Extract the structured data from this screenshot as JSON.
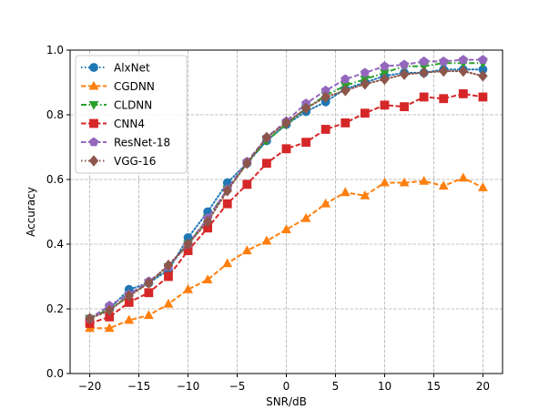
{
  "chart_data": {
    "type": "line",
    "title": "",
    "xlabel": "SNR/dB",
    "ylabel": "Accuracy",
    "xlim": [
      -22,
      22
    ],
    "ylim": [
      0,
      1.0
    ],
    "xticks": [
      -20,
      -15,
      -10,
      -5,
      0,
      5,
      10,
      15,
      20
    ],
    "yticks": [
      0.0,
      0.2,
      0.4,
      0.6,
      0.8,
      1.0
    ],
    "xtick_labels": [
      "−20",
      "−15",
      "−10",
      "−5",
      "0",
      "5",
      "10",
      "15",
      "20"
    ],
    "ytick_labels": [
      "0.0",
      "0.2",
      "0.4",
      "0.6",
      "0.8",
      "1.0"
    ],
    "grid": true,
    "legend_position": "top-left",
    "x": [
      -20,
      -18,
      -16,
      -14,
      -12,
      -10,
      -8,
      -6,
      -4,
      -2,
      0,
      2,
      4,
      6,
      8,
      10,
      12,
      14,
      16,
      18,
      20
    ],
    "series": [
      {
        "name": "AlxNet",
        "color": "#1f77b4",
        "marker": "circle",
        "dash": "dotted",
        "values": [
          0.17,
          0.2,
          0.26,
          0.28,
          0.32,
          0.42,
          0.5,
          0.59,
          0.65,
          0.72,
          0.77,
          0.81,
          0.84,
          0.88,
          0.9,
          0.92,
          0.93,
          0.93,
          0.94,
          0.94,
          0.94
        ]
      },
      {
        "name": "CGDNN",
        "color": "#ff7f0e",
        "marker": "triangle-up",
        "dash": "dashed",
        "values": [
          0.14,
          0.14,
          0.165,
          0.18,
          0.215,
          0.26,
          0.29,
          0.34,
          0.38,
          0.41,
          0.445,
          0.48,
          0.525,
          0.56,
          0.55,
          0.59,
          0.59,
          0.595,
          0.58,
          0.605,
          0.575
        ]
      },
      {
        "name": "CLDNN",
        "color": "#2ca02c",
        "marker": "triangle-down",
        "dash": "dashdot",
        "values": [
          0.17,
          0.2,
          0.24,
          0.28,
          0.33,
          0.4,
          0.48,
          0.57,
          0.65,
          0.72,
          0.77,
          0.82,
          0.86,
          0.89,
          0.91,
          0.93,
          0.95,
          0.95,
          0.96,
          0.96,
          0.96
        ]
      },
      {
        "name": "CNN4",
        "color": "#d62728",
        "marker": "square",
        "dash": "dashed",
        "values": [
          0.155,
          0.175,
          0.22,
          0.25,
          0.3,
          0.38,
          0.45,
          0.525,
          0.585,
          0.65,
          0.695,
          0.715,
          0.755,
          0.775,
          0.805,
          0.83,
          0.825,
          0.855,
          0.85,
          0.865,
          0.855
        ]
      },
      {
        "name": "ResNet-18",
        "color": "#9467bd",
        "marker": "pentagon",
        "dash": "dashed",
        "values": [
          0.17,
          0.21,
          0.245,
          0.285,
          0.33,
          0.4,
          0.48,
          0.57,
          0.655,
          0.73,
          0.78,
          0.835,
          0.875,
          0.91,
          0.93,
          0.95,
          0.955,
          0.965,
          0.965,
          0.97,
          0.97
        ]
      },
      {
        "name": "VGG-16",
        "color": "#8c564b",
        "marker": "diamond",
        "dash": "dotted",
        "values": [
          0.17,
          0.195,
          0.24,
          0.28,
          0.335,
          0.4,
          0.47,
          0.565,
          0.65,
          0.73,
          0.775,
          0.82,
          0.855,
          0.875,
          0.895,
          0.91,
          0.925,
          0.93,
          0.935,
          0.935,
          0.92
        ]
      }
    ]
  }
}
